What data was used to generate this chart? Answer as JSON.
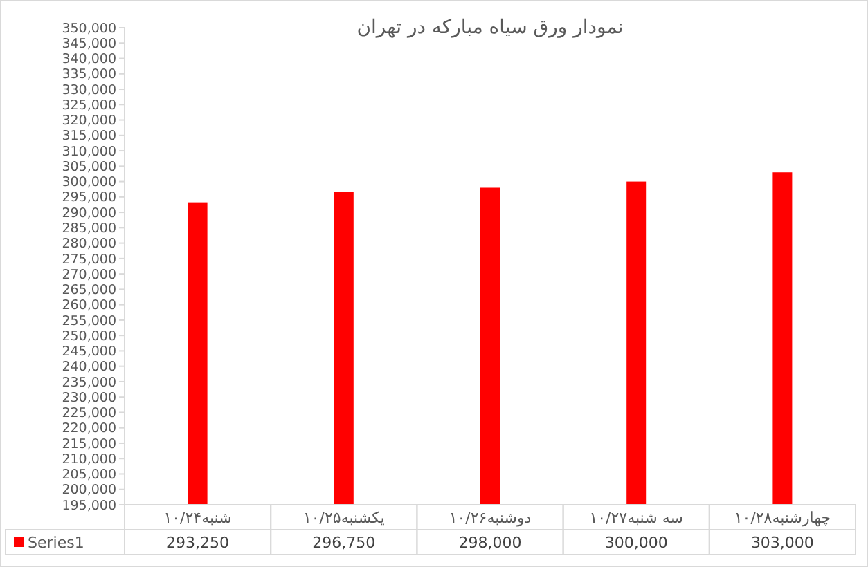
{
  "chart_data": {
    "type": "bar",
    "title": "نمودار ورق سیاه مبارکه در تهران",
    "categories": [
      "شنبه۱۰/۲۴",
      "یکشنبه۱۰/۲۵",
      "دوشنبه۱۰/۲۶",
      "سه شنبه۱۰/۲۷",
      "چهارشنبه۱۰/۲۸"
    ],
    "series": [
      {
        "name": "Series1",
        "color": "#ff0000",
        "values": [
          293250,
          296750,
          298000,
          300000,
          303000
        ],
        "value_labels": [
          "293,250",
          "296,750",
          "298,000",
          "300,000",
          "303,000"
        ]
      }
    ],
    "ylim": [
      195000,
      350000
    ],
    "yticks": [
      {
        "value": 195000,
        "label": "195,000"
      },
      {
        "value": 200000,
        "label": "200,000"
      },
      {
        "value": 205000,
        "label": "205,000"
      },
      {
        "value": 210000,
        "label": "210,000"
      },
      {
        "value": 215000,
        "label": "215,000"
      },
      {
        "value": 220000,
        "label": "220,000"
      },
      {
        "value": 225000,
        "label": "225,000"
      },
      {
        "value": 230000,
        "label": "230,000"
      },
      {
        "value": 235000,
        "label": "235,000"
      },
      {
        "value": 240000,
        "label": "240,000"
      },
      {
        "value": 245000,
        "label": "245,000"
      },
      {
        "value": 250000,
        "label": "250,000"
      },
      {
        "value": 255000,
        "label": "255,000"
      },
      {
        "value": 260000,
        "label": "260,000"
      },
      {
        "value": 265000,
        "label": "265,000"
      },
      {
        "value": 270000,
        "label": "270,000"
      },
      {
        "value": 275000,
        "label": "275,000"
      },
      {
        "value": 280000,
        "label": "280,000"
      },
      {
        "value": 285000,
        "label": "285,000"
      },
      {
        "value": 290000,
        "label": "290,000"
      },
      {
        "value": 295000,
        "label": "295,000"
      },
      {
        "value": 300000,
        "label": "300,000"
      },
      {
        "value": 305000,
        "label": "305,000"
      },
      {
        "value": 310000,
        "label": "310,000"
      },
      {
        "value": 315000,
        "label": "315,000"
      },
      {
        "value": 320000,
        "label": "320,000"
      },
      {
        "value": 325000,
        "label": "325,000"
      },
      {
        "value": 330000,
        "label": "330,000"
      },
      {
        "value": 335000,
        "label": "335,000"
      },
      {
        "value": 340000,
        "label": "340,000"
      },
      {
        "value": 345000,
        "label": "345,000"
      },
      {
        "value": 350000,
        "label": "350,000"
      }
    ],
    "legend": "bottom",
    "grid": false
  }
}
